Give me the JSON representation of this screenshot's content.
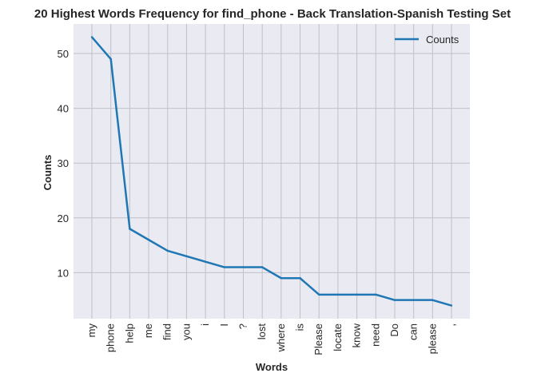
{
  "chart_data": {
    "type": "line",
    "title": "20 Highest Words Frequency for find_phone - Back Translation-Spanish Testing Set",
    "xlabel": "Words",
    "ylabel": "Counts",
    "categories": [
      "my",
      "phone",
      "help",
      "me",
      "find",
      "you",
      "i",
      "I",
      "?",
      "lost",
      "where",
      "is",
      "Please",
      "locate",
      "know",
      "need",
      "Do",
      "can",
      "please",
      ","
    ],
    "series": [
      {
        "name": "Counts",
        "color": "#1f77b4",
        "values": [
          53,
          49,
          18,
          16,
          14,
          13,
          12,
          11,
          11,
          11,
          9,
          9,
          6,
          6,
          6,
          6,
          5,
          5,
          5,
          4
        ]
      }
    ],
    "ylim": [
      1.6,
      55.4
    ],
    "yticks": [
      10,
      20,
      30,
      40,
      50
    ],
    "grid": true,
    "legend": "top-right",
    "colors": {
      "plot_bg": "#eaeaf2",
      "grid": "#c0c0c8",
      "line": "#1f77b4"
    }
  }
}
